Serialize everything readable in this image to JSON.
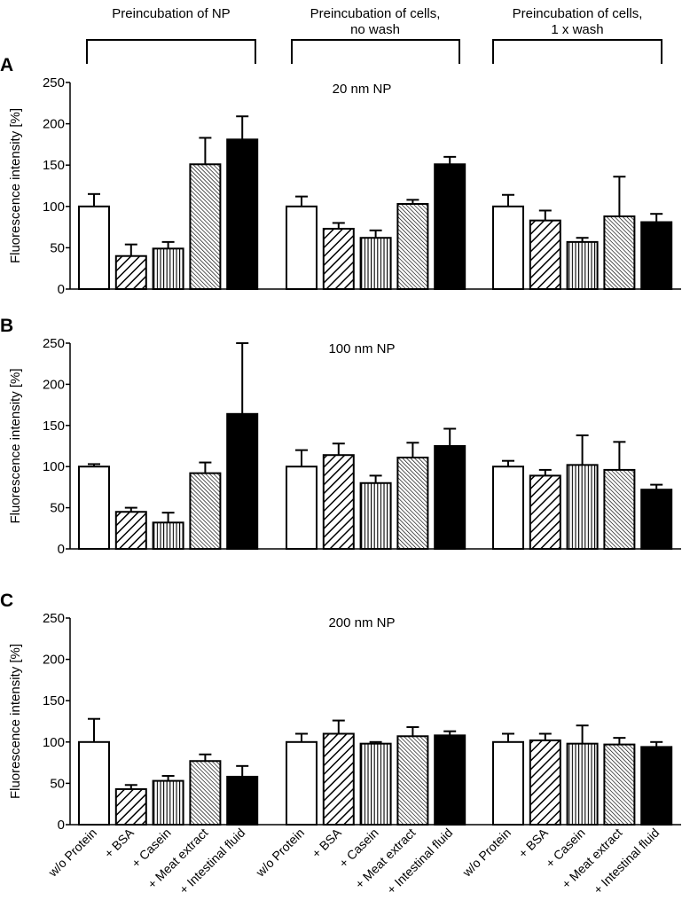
{
  "chart_data": {
    "type": "bar",
    "group_headers": [
      {
        "lines": [
          "Preincubation of NP"
        ]
      },
      {
        "lines": [
          "Preincubation of cells,",
          "no wash"
        ]
      },
      {
        "lines": [
          "Preincubation of cells,",
          "1 x wash"
        ]
      }
    ],
    "categories": [
      "w/o Protein",
      "+ BSA",
      "+ Casein",
      "+ Meat extract",
      "+ Intestinal fluid"
    ],
    "category_fills": [
      "white",
      "diag-wide",
      "vertical",
      "diag-dense",
      "black"
    ],
    "ylabel": "Fluorescence intensity [%]",
    "ylim": [
      0,
      250
    ],
    "yticks": [
      0,
      50,
      100,
      150,
      200,
      250
    ],
    "grid": false,
    "panels": [
      {
        "label": "A",
        "title": "20 nm NP",
        "groups": [
          {
            "values": [
              100,
              40,
              49,
              151,
              181
            ],
            "errors_upper": [
              115,
              54,
              57,
              183,
              209
            ]
          },
          {
            "values": [
              100,
              73,
              62,
              103,
              151
            ],
            "errors_upper": [
              112,
              80,
              71,
              108,
              160
            ]
          },
          {
            "values": [
              100,
              83,
              57,
              88,
              81
            ],
            "errors_upper": [
              114,
              95,
              62,
              136,
              91
            ]
          }
        ]
      },
      {
        "label": "B",
        "title": "100 nm NP",
        "groups": [
          {
            "values": [
              100,
              45,
              32,
              92,
              164
            ],
            "errors_upper": [
              103,
              50,
              44,
              105,
              250
            ]
          },
          {
            "values": [
              100,
              114,
              80,
              111,
              125
            ],
            "errors_upper": [
              120,
              128,
              89,
              129,
              146
            ]
          },
          {
            "values": [
              100,
              89,
              102,
              96,
              72
            ],
            "errors_upper": [
              107,
              96,
              138,
              130,
              78
            ]
          }
        ]
      },
      {
        "label": "C",
        "title": "200 nm NP",
        "groups": [
          {
            "values": [
              100,
              43,
              53,
              77,
              58
            ],
            "errors_upper": [
              128,
              48,
              59,
              85,
              71
            ]
          },
          {
            "values": [
              100,
              110,
              98,
              107,
              108
            ],
            "errors_upper": [
              110,
              126,
              100,
              118,
              113
            ]
          },
          {
            "values": [
              100,
              102,
              98,
              97,
              94
            ],
            "errors_upper": [
              110,
              110,
              120,
              105,
              100
            ]
          }
        ]
      }
    ]
  }
}
